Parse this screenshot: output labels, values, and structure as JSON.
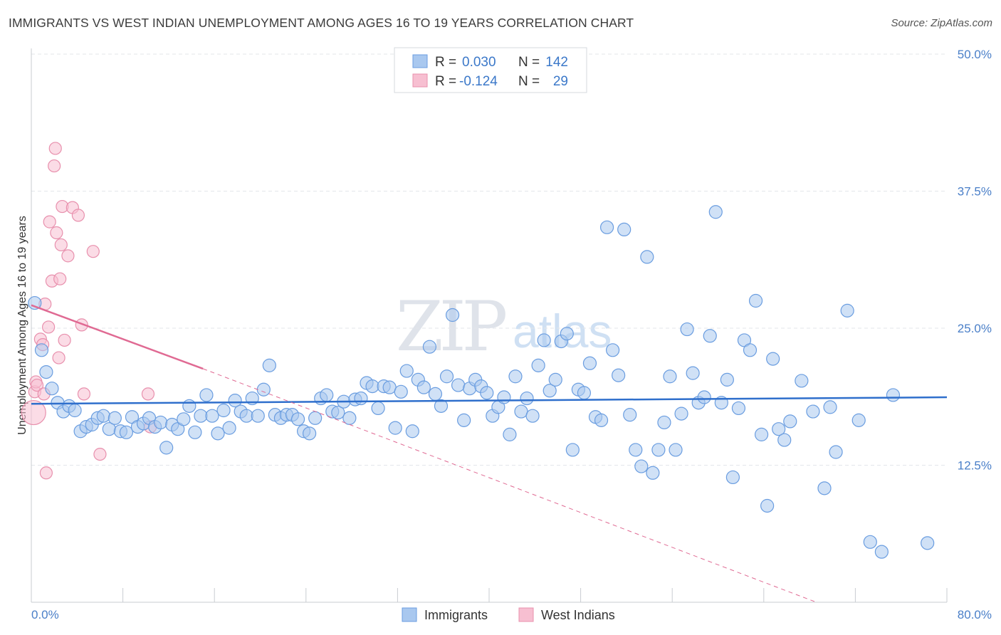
{
  "title": "IMMIGRANTS VS WEST INDIAN UNEMPLOYMENT AMONG AGES 16 TO 19 YEARS CORRELATION CHART",
  "source": "Source: ZipAtlas.com",
  "watermark": {
    "zip": "ZIP",
    "atlas": "atlas"
  },
  "colors": {
    "blue_fill": "#a9c8ef",
    "blue_stroke": "#6a9de0",
    "blue_line": "#2f6fcc",
    "pink_fill": "#f7bfd1",
    "pink_stroke": "#e890ad",
    "pink_line": "#e06a93",
    "grid": "#e3e6ea",
    "tick": "#4a7fc8"
  },
  "legend": {
    "rows": [
      {
        "r_label": "R =",
        "r_value": "0.030",
        "n_label": "N =",
        "n_value": "142"
      },
      {
        "r_label": "R =",
        "r_value": "-0.124",
        "n_label": "N =",
        "n_value": "29"
      }
    ]
  },
  "chart_data": {
    "type": "scatter",
    "title": "IMMIGRANTS VS WEST INDIAN UNEMPLOYMENT AMONG AGES 16 TO 19 YEARS CORRELATION CHART",
    "xlabel": "",
    "ylabel": "Unemployment Among Ages 16 to 19 years",
    "xlim": [
      0,
      80
    ],
    "ylim": [
      0,
      50
    ],
    "x_tick_labels": [
      "0.0%",
      "80.0%"
    ],
    "y_ticks": [
      12.5,
      25.0,
      37.5,
      50.0
    ],
    "y_tick_labels": [
      "12.5%",
      "25.0%",
      "37.5%",
      "50.0%"
    ],
    "grid": true,
    "legend_position": "top-center",
    "series": [
      {
        "name": "Immigrants",
        "r": 0.03,
        "n": 142,
        "trend": {
          "x": [
            0,
            80
          ],
          "y": [
            18.1,
            18.7
          ]
        },
        "points": [
          [
            0.3,
            27.3
          ],
          [
            0.9,
            23.0
          ],
          [
            1.3,
            21.0
          ],
          [
            1.8,
            19.5
          ],
          [
            2.3,
            18.2
          ],
          [
            2.8,
            17.4
          ],
          [
            3.3,
            17.9
          ],
          [
            3.8,
            17.5
          ],
          [
            4.3,
            15.6
          ],
          [
            4.8,
            16.0
          ],
          [
            5.3,
            16.2
          ],
          [
            5.8,
            16.8
          ],
          [
            6.3,
            17.0
          ],
          [
            6.8,
            15.8
          ],
          [
            7.3,
            16.8
          ],
          [
            7.8,
            15.6
          ],
          [
            8.3,
            15.5
          ],
          [
            8.8,
            16.9
          ],
          [
            9.3,
            16.0
          ],
          [
            9.8,
            16.3
          ],
          [
            10.3,
            16.8
          ],
          [
            10.8,
            16.0
          ],
          [
            11.3,
            16.4
          ],
          [
            11.8,
            14.1
          ],
          [
            12.3,
            16.2
          ],
          [
            12.8,
            15.8
          ],
          [
            13.3,
            16.7
          ],
          [
            13.8,
            17.9
          ],
          [
            14.3,
            15.5
          ],
          [
            14.8,
            17.0
          ],
          [
            15.3,
            18.9
          ],
          [
            15.8,
            17.0
          ],
          [
            16.3,
            15.4
          ],
          [
            16.8,
            17.5
          ],
          [
            17.3,
            15.9
          ],
          [
            17.8,
            18.4
          ],
          [
            18.3,
            17.4
          ],
          [
            18.8,
            17.0
          ],
          [
            19.3,
            18.6
          ],
          [
            19.8,
            17.0
          ],
          [
            20.3,
            19.4
          ],
          [
            20.8,
            21.6
          ],
          [
            21.3,
            17.1
          ],
          [
            21.8,
            16.8
          ],
          [
            22.3,
            17.1
          ],
          [
            22.8,
            17.1
          ],
          [
            23.3,
            16.7
          ],
          [
            23.8,
            15.6
          ],
          [
            24.3,
            15.4
          ],
          [
            24.8,
            16.8
          ],
          [
            25.3,
            18.6
          ],
          [
            25.8,
            18.9
          ],
          [
            26.3,
            17.4
          ],
          [
            26.8,
            17.3
          ],
          [
            27.3,
            18.3
          ],
          [
            27.8,
            16.8
          ],
          [
            28.3,
            18.5
          ],
          [
            28.8,
            18.6
          ],
          [
            29.3,
            20.0
          ],
          [
            29.8,
            19.7
          ],
          [
            30.3,
            17.7
          ],
          [
            30.8,
            19.7
          ],
          [
            31.3,
            19.6
          ],
          [
            31.8,
            15.9
          ],
          [
            32.3,
            19.2
          ],
          [
            32.8,
            21.1
          ],
          [
            33.3,
            15.6
          ],
          [
            33.8,
            20.3
          ],
          [
            34.3,
            19.6
          ],
          [
            34.8,
            23.3
          ],
          [
            35.3,
            19.0
          ],
          [
            35.8,
            17.9
          ],
          [
            36.3,
            20.6
          ],
          [
            36.8,
            26.2
          ],
          [
            37.3,
            19.8
          ],
          [
            37.8,
            16.6
          ],
          [
            38.3,
            19.5
          ],
          [
            38.8,
            20.3
          ],
          [
            39.3,
            19.7
          ],
          [
            39.8,
            19.1
          ],
          [
            40.3,
            17.0
          ],
          [
            40.8,
            17.8
          ],
          [
            41.3,
            18.7
          ],
          [
            41.8,
            15.3
          ],
          [
            42.3,
            20.6
          ],
          [
            42.8,
            17.4
          ],
          [
            43.3,
            18.6
          ],
          [
            43.8,
            17.0
          ],
          [
            44.3,
            21.6
          ],
          [
            44.8,
            23.9
          ],
          [
            45.3,
            19.3
          ],
          [
            45.8,
            20.3
          ],
          [
            46.3,
            23.8
          ],
          [
            46.8,
            24.5
          ],
          [
            47.3,
            13.9
          ],
          [
            47.8,
            19.4
          ],
          [
            48.3,
            19.1
          ],
          [
            48.8,
            21.8
          ],
          [
            49.3,
            16.9
          ],
          [
            49.8,
            16.6
          ],
          [
            50.3,
            34.2
          ],
          [
            50.8,
            23.0
          ],
          [
            51.3,
            20.7
          ],
          [
            51.8,
            34.0
          ],
          [
            52.3,
            17.1
          ],
          [
            52.8,
            13.9
          ],
          [
            53.3,
            12.4
          ],
          [
            53.8,
            31.5
          ],
          [
            54.3,
            11.8
          ],
          [
            54.8,
            13.9
          ],
          [
            55.3,
            16.4
          ],
          [
            55.8,
            20.6
          ],
          [
            56.3,
            13.9
          ],
          [
            56.8,
            17.2
          ],
          [
            57.3,
            24.9
          ],
          [
            57.8,
            20.9
          ],
          [
            58.3,
            18.2
          ],
          [
            58.8,
            18.7
          ],
          [
            59.3,
            24.3
          ],
          [
            59.8,
            35.6
          ],
          [
            60.3,
            18.2
          ],
          [
            60.8,
            20.3
          ],
          [
            61.3,
            11.4
          ],
          [
            61.8,
            17.7
          ],
          [
            62.3,
            23.9
          ],
          [
            62.8,
            23.0
          ],
          [
            63.3,
            27.5
          ],
          [
            63.8,
            15.3
          ],
          [
            64.3,
            8.8
          ],
          [
            64.8,
            22.2
          ],
          [
            65.3,
            15.8
          ],
          [
            65.8,
            14.8
          ],
          [
            66.3,
            16.5
          ],
          [
            67.3,
            20.2
          ],
          [
            68.3,
            17.4
          ],
          [
            69.3,
            10.4
          ],
          [
            69.8,
            17.8
          ],
          [
            70.3,
            13.7
          ],
          [
            71.3,
            26.6
          ],
          [
            72.3,
            16.6
          ],
          [
            73.3,
            5.5
          ],
          [
            74.3,
            4.6
          ],
          [
            75.3,
            18.9
          ],
          [
            78.3,
            5.4
          ]
        ]
      },
      {
        "name": "West Indians",
        "r": -0.124,
        "n": 29,
        "trend_solid": {
          "x": [
            0,
            15
          ],
          "y": [
            27.1,
            21.3
          ]
        },
        "trend_dashed": {
          "x": [
            15,
            68.6
          ],
          "y": [
            21.3,
            0
          ]
        },
        "points": [
          [
            0.2,
            17.3
          ],
          [
            0.3,
            19.2
          ],
          [
            0.4,
            20.1
          ],
          [
            0.5,
            19.8
          ],
          [
            0.8,
            24.0
          ],
          [
            1.0,
            23.5
          ],
          [
            1.1,
            19.0
          ],
          [
            1.2,
            27.2
          ],
          [
            1.3,
            11.8
          ],
          [
            1.5,
            25.1
          ],
          [
            1.6,
            34.7
          ],
          [
            1.8,
            29.3
          ],
          [
            2.0,
            39.8
          ],
          [
            2.1,
            41.4
          ],
          [
            2.2,
            33.7
          ],
          [
            2.4,
            22.3
          ],
          [
            2.5,
            29.5
          ],
          [
            2.6,
            32.6
          ],
          [
            2.7,
            36.1
          ],
          [
            2.9,
            23.9
          ],
          [
            3.2,
            31.6
          ],
          [
            3.6,
            36.0
          ],
          [
            4.1,
            35.3
          ],
          [
            4.4,
            25.3
          ],
          [
            4.6,
            19.0
          ],
          [
            5.4,
            32.0
          ],
          [
            6.0,
            13.5
          ],
          [
            10.2,
            19.0
          ],
          [
            10.4,
            16.0
          ]
        ]
      }
    ]
  }
}
